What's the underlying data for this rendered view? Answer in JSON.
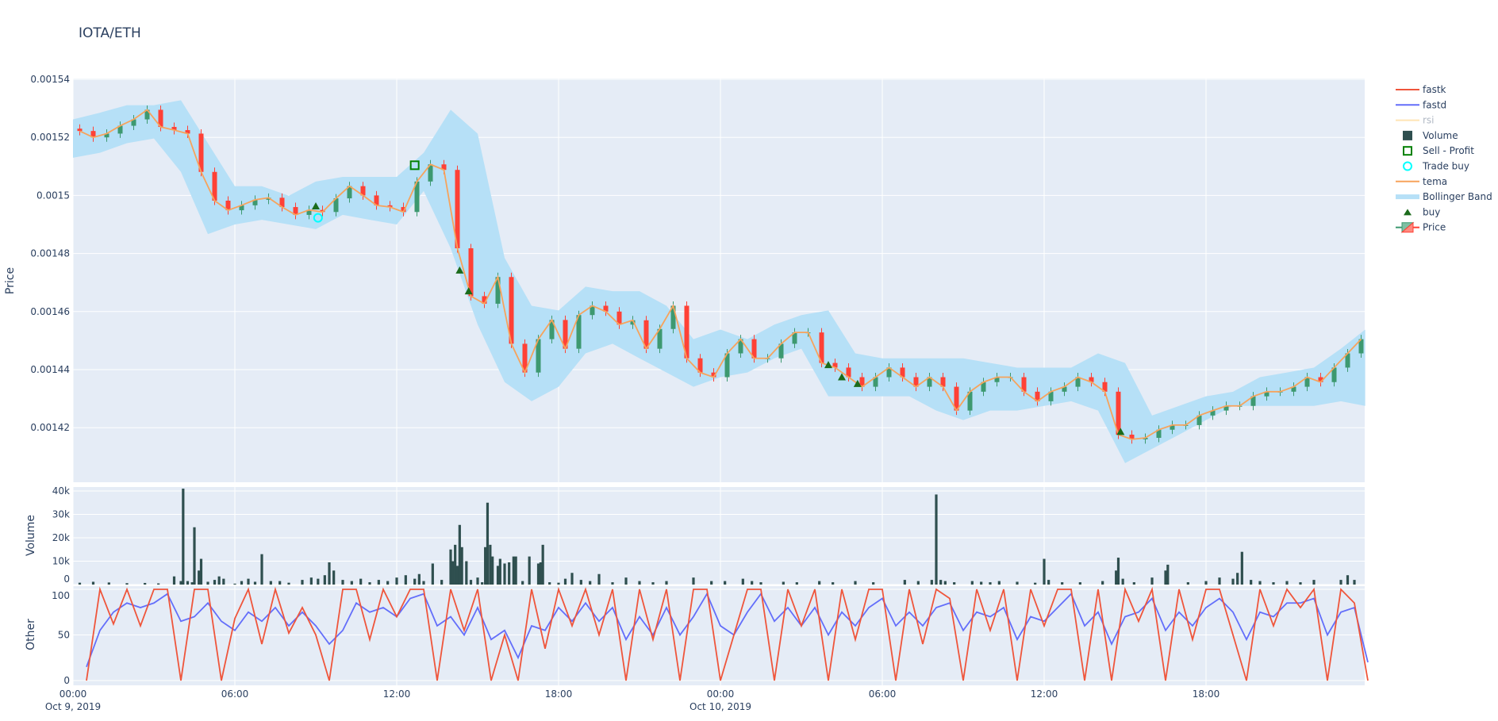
{
  "title": "IOTA/ETH",
  "colors": {
    "panel_bg": "#E5ECF6",
    "grid": "#ffffff",
    "increasing": "#3D9970",
    "decreasing": "#FF4136",
    "bollinger": "#B6E0F7",
    "tema": "#F7A35C",
    "fastk": "#EF553B",
    "fastd": "#636EFA",
    "rsi": "#FFE4B5",
    "volume": "#2F4F4F",
    "buy": "#1B6B1B",
    "sell_profit": "#008000",
    "trade_buy": "#00FFFF"
  },
  "legend": [
    {
      "name": "fastk",
      "icon": "line"
    },
    {
      "name": "fastd",
      "icon": "line"
    },
    {
      "name": "rsi",
      "icon": "line",
      "hidden": true
    },
    {
      "name": "Volume",
      "icon": "square"
    },
    {
      "name": "Sell - Profit",
      "icon": "square-open"
    },
    {
      "name": "Trade buy",
      "icon": "circle-open"
    },
    {
      "name": "tema",
      "icon": "line"
    },
    {
      "name": "Bollinger Band",
      "icon": "band"
    },
    {
      "name": "buy",
      "icon": "triangle-up"
    },
    {
      "name": "Price",
      "icon": "candlestick"
    }
  ],
  "chart_data": [
    {
      "type": "candlestick",
      "ylabel": "Price",
      "ylim": [
        0.0014012,
        0.00154
      ],
      "yticks": [
        "0.00142",
        "0.00144",
        "0.00146",
        "0.00148",
        "0.0015",
        "0.00152",
        "0.00154"
      ],
      "ytick_values": [
        0.00142,
        0.00144,
        0.00146,
        0.00148,
        0.0015,
        0.00152,
        0.00154
      ],
      "grid": true,
      "x_start": "2019-10-09 00:00",
      "x_step_minutes": 30,
      "close": [
        0.0015222,
        0.00152,
        0.0015213,
        0.001524,
        0.0015262,
        0.0015295,
        0.0015236,
        0.0015225,
        0.0015213,
        0.0015081,
        0.0014982,
        0.0014949,
        0.0014966,
        0.0014985,
        0.0014992,
        0.001496,
        0.0014933,
        0.001495,
        0.0014943,
        0.001499,
        0.0015032,
        0.0015,
        0.0014966,
        0.001496,
        0.0014943,
        0.0015048,
        0.0015107,
        0.0015088,
        0.0014818,
        0.0014653,
        0.0014627,
        0.0014719,
        0.0014489,
        0.001439,
        0.0014505,
        0.0014571,
        0.0014472,
        0.0014588,
        0.001462,
        0.00146,
        0.0014555,
        0.001457,
        0.0014472,
        0.001454,
        0.001462,
        0.0014439,
        0.001439,
        0.0014374,
        0.0014456,
        0.0014505,
        0.0014439,
        0.0014439,
        0.0014489,
        0.0014528,
        0.0014528,
        0.0014423,
        0.0014407,
        0.0014374,
        0.0014341,
        0.0014374,
        0.0014407,
        0.0014374,
        0.0014341,
        0.0014374,
        0.0014341,
        0.0014259,
        0.0014324,
        0.0014357,
        0.0014374,
        0.0014374,
        0.0014324,
        0.0014291,
        0.0014324,
        0.0014341,
        0.0014374,
        0.0014357,
        0.0014324,
        0.0014176,
        0.001416,
        0.0014165,
        0.0014193,
        0.0014209,
        0.0014209,
        0.0014242,
        0.0014259,
        0.0014275,
        0.0014275,
        0.0014308,
        0.0014324,
        0.0014324,
        0.0014341,
        0.0014374,
        0.0014357,
        0.0014407,
        0.0014456,
        0.0014505
      ],
      "bollinger_step_minutes": 60,
      "bollinger_upper": [
        0.0015262,
        0.0015285,
        0.0015311,
        0.0015311,
        0.0015328,
        0.001518,
        0.0015032,
        0.0015032,
        0.0014999,
        0.0015048,
        0.0015064,
        0.0015064,
        0.0015064,
        0.0015147,
        0.0015295,
        0.0015213,
        0.0014785,
        0.001462,
        0.0014604,
        0.0014686,
        0.001467,
        0.001467,
        0.001462,
        0.0014505,
        0.0014538,
        0.0014505,
        0.0014555,
        0.0014588,
        0.0014604,
        0.0014456,
        0.0014439,
        0.0014439,
        0.0014439,
        0.0014439,
        0.0014423,
        0.0014407,
        0.0014407,
        0.0014407,
        0.0014456,
        0.0014423,
        0.0014242,
        0.0014275,
        0.0014308,
        0.0014324,
        0.0014374,
        0.001439,
        0.0014407,
        0.0014472,
        0.0014538
      ],
      "bollinger_lower": [
        0.001513,
        0.0015147,
        0.001518,
        0.0015196,
        0.0015081,
        0.0014867,
        0.00149,
        0.0014916,
        0.00149,
        0.0014884,
        0.0014933,
        0.0014916,
        0.00149,
        0.0015015,
        0.0014818,
        0.0014555,
        0.0014357,
        0.0014291,
        0.0014341,
        0.0014456,
        0.0014489,
        0.0014439,
        0.001439,
        0.0014341,
        0.0014374,
        0.001439,
        0.0014439,
        0.0014472,
        0.0014308,
        0.0014308,
        0.0014308,
        0.0014308,
        0.0014259,
        0.0014226,
        0.0014259,
        0.0014259,
        0.0014275,
        0.0014291,
        0.0014259,
        0.0014078,
        0.0014127,
        0.0014176,
        0.0014226,
        0.0014275,
        0.0014275,
        0.0014275,
        0.0014275,
        0.0014291,
        0.0014275
      ],
      "buy": [
        [
          "2019-10-09 09:00",
          0.0014963
        ],
        [
          "2019-10-09 14:20",
          0.0014742
        ],
        [
          "2019-10-09 14:40",
          0.001467
        ],
        [
          "2019-10-10 04:00",
          0.0014416
        ],
        [
          "2019-10-10 04:30",
          0.0014374
        ],
        [
          "2019-10-10 05:05",
          0.0014351
        ],
        [
          "2019-10-10 14:50",
          0.0014186
        ]
      ],
      "trade_buy": [
        [
          "2019-10-09 09:05",
          0.0014923
        ]
      ],
      "sell_profit": [
        [
          "2019-10-09 12:40",
          0.0015104
        ]
      ]
    },
    {
      "type": "bar",
      "ylabel": "Volume",
      "ylim": [
        0,
        42000
      ],
      "yticks": [
        "0",
        "10k",
        "20k",
        "30k",
        "40k"
      ],
      "ytick_values": [
        0,
        10000,
        20000,
        30000,
        40000
      ],
      "bars": [
        [
          "2019-10-09 00:15",
          800
        ],
        [
          "2019-10-09 00:45",
          1200
        ],
        [
          "2019-10-09 01:20",
          900
        ],
        [
          "2019-10-09 02:00",
          600
        ],
        [
          "2019-10-09 02:40",
          700
        ],
        [
          "2019-10-09 03:10",
          500
        ],
        [
          "2019-10-09 03:45",
          3500
        ],
        [
          "2019-10-09 04:00",
          1500
        ],
        [
          "2019-10-09 04:05",
          41000
        ],
        [
          "2019-10-09 04:15",
          1500
        ],
        [
          "2019-10-09 04:25",
          1000
        ],
        [
          "2019-10-09 04:30",
          24500
        ],
        [
          "2019-10-09 04:40",
          6000
        ],
        [
          "2019-10-09 04:45",
          11000
        ],
        [
          "2019-10-09 05:00",
          1200
        ],
        [
          "2019-10-09 05:15",
          2000
        ],
        [
          "2019-10-09 05:25",
          3500
        ],
        [
          "2019-10-09 05:35",
          2500
        ],
        [
          "2019-10-09 06:00",
          400
        ],
        [
          "2019-10-09 06:15",
          1500
        ],
        [
          "2019-10-09 06:30",
          2500
        ],
        [
          "2019-10-09 06:45",
          1200
        ],
        [
          "2019-10-09 07:00",
          13000
        ],
        [
          "2019-10-09 07:20",
          1500
        ],
        [
          "2019-10-09 07:40",
          1500
        ],
        [
          "2019-10-09 08:00",
          800
        ],
        [
          "2019-10-09 08:30",
          2000
        ],
        [
          "2019-10-09 08:50",
          3000
        ],
        [
          "2019-10-09 09:05",
          2500
        ],
        [
          "2019-10-09 09:20",
          4000
        ],
        [
          "2019-10-09 09:30",
          9500
        ],
        [
          "2019-10-09 09:40",
          6000
        ],
        [
          "2019-10-09 10:00",
          2000
        ],
        [
          "2019-10-09 10:20",
          1500
        ],
        [
          "2019-10-09 10:40",
          2500
        ],
        [
          "2019-10-09 11:00",
          1000
        ],
        [
          "2019-10-09 11:20",
          2000
        ],
        [
          "2019-10-09 11:40",
          1500
        ],
        [
          "2019-10-09 12:00",
          3000
        ],
        [
          "2019-10-09 12:20",
          4000
        ],
        [
          "2019-10-09 12:40",
          2500
        ],
        [
          "2019-10-09 12:50",
          4500
        ],
        [
          "2019-10-09 13:00",
          1500
        ],
        [
          "2019-10-09 13:20",
          9000
        ],
        [
          "2019-10-09 13:40",
          2000
        ],
        [
          "2019-10-09 14:00",
          15000
        ],
        [
          "2019-10-09 14:05",
          10000
        ],
        [
          "2019-10-09 14:10",
          17000
        ],
        [
          "2019-10-09 14:15",
          8000
        ],
        [
          "2019-10-09 14:20",
          25500
        ],
        [
          "2019-10-09 14:25",
          16000
        ],
        [
          "2019-10-09 14:35",
          10000
        ],
        [
          "2019-10-09 14:45",
          2000
        ],
        [
          "2019-10-09 15:00",
          3000
        ],
        [
          "2019-10-09 15:10",
          1000
        ],
        [
          "2019-10-09 15:17",
          16000
        ],
        [
          "2019-10-09 15:22",
          35000
        ],
        [
          "2019-10-09 15:28",
          17000
        ],
        [
          "2019-10-09 15:33",
          12000
        ],
        [
          "2019-10-09 15:45",
          8000
        ],
        [
          "2019-10-09 15:50",
          11000
        ],
        [
          "2019-10-09 16:00",
          9000
        ],
        [
          "2019-10-09 16:10",
          9500
        ],
        [
          "2019-10-09 16:20",
          12000
        ],
        [
          "2019-10-09 16:25",
          12000
        ],
        [
          "2019-10-09 16:40",
          1500
        ],
        [
          "2019-10-09 16:55",
          12000
        ],
        [
          "2019-10-09 17:15",
          9000
        ],
        [
          "2019-10-09 17:20",
          9500
        ],
        [
          "2019-10-09 17:25",
          17000
        ],
        [
          "2019-10-09 17:40",
          1000
        ],
        [
          "2019-10-09 18:00",
          800
        ],
        [
          "2019-10-09 18:15",
          2500
        ],
        [
          "2019-10-09 18:30",
          5000
        ],
        [
          "2019-10-09 18:50",
          2000
        ],
        [
          "2019-10-09 19:10",
          1500
        ],
        [
          "2019-10-09 19:30",
          4500
        ],
        [
          "2019-10-09 20:00",
          1000
        ],
        [
          "2019-10-09 20:30",
          3000
        ],
        [
          "2019-10-09 21:00",
          1500
        ],
        [
          "2019-10-09 21:30",
          1000
        ],
        [
          "2019-10-09 22:00",
          1500
        ],
        [
          "2019-10-09 23:00",
          3000
        ],
        [
          "2019-10-09 23:40",
          1500
        ],
        [
          "2019-10-10 00:10",
          1500
        ],
        [
          "2019-10-10 00:50",
          2500
        ],
        [
          "2019-10-10 01:10",
          1500
        ],
        [
          "2019-10-10 01:30",
          1000
        ],
        [
          "2019-10-10 02:20",
          1200
        ],
        [
          "2019-10-10 02:50",
          1000
        ],
        [
          "2019-10-10 03:40",
          1500
        ],
        [
          "2019-10-10 04:10",
          1000
        ],
        [
          "2019-10-10 05:00",
          1500
        ],
        [
          "2019-10-10 05:40",
          1000
        ],
        [
          "2019-10-10 06:50",
          2000
        ],
        [
          "2019-10-10 07:20",
          1500
        ],
        [
          "2019-10-10 07:50",
          2000
        ],
        [
          "2019-10-10 08:00",
          38500
        ],
        [
          "2019-10-10 08:10",
          2000
        ],
        [
          "2019-10-10 08:20",
          1500
        ],
        [
          "2019-10-10 08:40",
          1000
        ],
        [
          "2019-10-10 09:20",
          1500
        ],
        [
          "2019-10-10 09:40",
          1200
        ],
        [
          "2019-10-10 10:00",
          1000
        ],
        [
          "2019-10-10 10:20",
          1500
        ],
        [
          "2019-10-10 11:00",
          1200
        ],
        [
          "2019-10-10 11:40",
          800
        ],
        [
          "2019-10-10 12:00",
          11000
        ],
        [
          "2019-10-10 12:10",
          2000
        ],
        [
          "2019-10-10 12:40",
          1000
        ],
        [
          "2019-10-10 13:20",
          1000
        ],
        [
          "2019-10-10 14:10",
          1500
        ],
        [
          "2019-10-10 14:40",
          6000
        ],
        [
          "2019-10-10 14:45",
          11500
        ],
        [
          "2019-10-10 14:55",
          2500
        ],
        [
          "2019-10-10 15:20",
          1000
        ],
        [
          "2019-10-10 16:00",
          3000
        ],
        [
          "2019-10-10 16:30",
          6000
        ],
        [
          "2019-10-10 16:35",
          8500
        ],
        [
          "2019-10-10 17:20",
          1000
        ],
        [
          "2019-10-10 18:00",
          1500
        ],
        [
          "2019-10-10 18:30",
          3000
        ],
        [
          "2019-10-10 19:00",
          2500
        ],
        [
          "2019-10-10 19:10",
          5000
        ],
        [
          "2019-10-10 19:20",
          14000
        ],
        [
          "2019-10-10 19:40",
          2000
        ],
        [
          "2019-10-10 20:00",
          1500
        ],
        [
          "2019-10-10 20:30",
          1000
        ],
        [
          "2019-10-10 21:00",
          1500
        ],
        [
          "2019-10-10 21:30",
          1000
        ],
        [
          "2019-10-10 22:00",
          2000
        ],
        [
          "2019-10-10 23:00",
          2000
        ],
        [
          "2019-10-10 23:15",
          4000
        ],
        [
          "2019-10-10 23:30",
          2000
        ]
      ]
    },
    {
      "type": "line",
      "ylabel": "Other",
      "ylim": [
        -5,
        100
      ],
      "yticks": [
        "0",
        "50",
        "100"
      ],
      "ytick_values": [
        0,
        50,
        100
      ],
      "x_start": "2019-10-09 00:00",
      "x_step_minutes": 30,
      "xticks": [
        [
          "00:00",
          "Oct 9, 2019"
        ],
        [
          "06:00",
          ""
        ],
        [
          "12:00",
          ""
        ],
        [
          "18:00",
          ""
        ],
        [
          "00:00",
          "Oct 10, 2019"
        ],
        [
          "06:00",
          ""
        ],
        [
          "12:00",
          ""
        ],
        [
          "18:00",
          ""
        ]
      ],
      "series": [
        {
          "name": "fastk",
          "values": [
            0,
            100,
            62,
            100,
            60,
            100,
            100,
            0,
            100,
            100,
            0,
            68,
            100,
            40,
            100,
            52,
            80,
            50,
            0,
            100,
            100,
            45,
            100,
            70,
            100,
            100,
            0,
            100,
            55,
            100,
            0,
            50,
            0,
            100,
            35,
            100,
            60,
            100,
            50,
            100,
            0,
            100,
            45,
            100,
            0,
            100,
            100,
            0,
            50,
            100,
            100,
            0,
            100,
            60,
            100,
            0,
            100,
            45,
            100,
            100,
            0,
            100,
            40,
            100,
            90,
            0,
            100,
            55,
            100,
            0,
            100,
            60,
            100,
            100,
            0,
            100,
            0,
            100,
            65,
            100,
            0,
            100,
            45,
            100,
            100,
            50,
            0,
            100,
            60,
            100,
            80,
            100,
            0,
            100,
            85,
            0
          ]
        },
        {
          "name": "fastd",
          "values": [
            15,
            55,
            75,
            85,
            80,
            85,
            95,
            65,
            70,
            85,
            65,
            55,
            75,
            65,
            80,
            60,
            75,
            60,
            40,
            55,
            85,
            75,
            80,
            70,
            90,
            95,
            60,
            70,
            50,
            80,
            45,
            55,
            25,
            60,
            55,
            80,
            65,
            85,
            65,
            80,
            45,
            70,
            50,
            80,
            50,
            70,
            95,
            60,
            50,
            75,
            95,
            65,
            80,
            60,
            80,
            50,
            75,
            60,
            80,
            90,
            60,
            75,
            60,
            80,
            85,
            55,
            75,
            70,
            80,
            45,
            70,
            65,
            80,
            95,
            60,
            75,
            40,
            70,
            75,
            90,
            55,
            75,
            60,
            80,
            90,
            75,
            45,
            75,
            70,
            85,
            85,
            90,
            50,
            75,
            80,
            20
          ]
        }
      ]
    }
  ]
}
